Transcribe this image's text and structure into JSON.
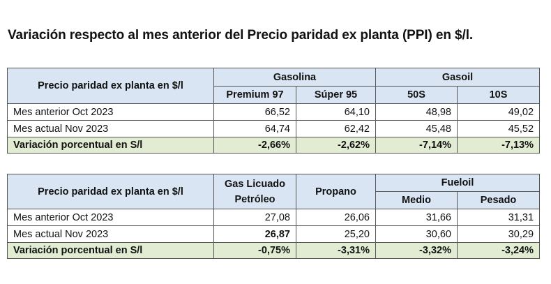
{
  "title": "Variación respecto al mes anterior del Precio paridad ex planta (PPI) en $/l.",
  "table1": {
    "header_label": "Precio paridad ex planta en $/l",
    "group1": "Gasolina",
    "group2": "Gasoil",
    "col1": "Premium 97",
    "col2": "Súper 95",
    "col3": "50S",
    "col4": "10S",
    "rows": [
      {
        "label": "Mes anterior Oct 2023",
        "values": [
          "66,52",
          "64,10",
          "48,98",
          "49,02"
        ]
      },
      {
        "label": "Mes actual Nov 2023",
        "values": [
          "64,74",
          "62,42",
          "45,48",
          "45,52"
        ]
      },
      {
        "label": "Variación porcentual en S/l",
        "values": [
          "-2,66%",
          "-2,62%",
          "-7,14%",
          "-7,13%"
        ]
      }
    ]
  },
  "table2": {
    "header_label": "Precio paridad ex planta en $/l",
    "col1_line1": "Gas Licuado",
    "col1_line2": "Petróleo",
    "col2": "Propano",
    "group": "Fueloil",
    "col3": "Medio",
    "col4": "Pesado",
    "rows": [
      {
        "label": "Mes anterior Oct 2023",
        "values": [
          "27,08",
          "26,06",
          "31,66",
          "31,31"
        ]
      },
      {
        "label": "Mes actual Nov 2023",
        "values": [
          "26,87",
          "25,20",
          "30,60",
          "30,29"
        ]
      },
      {
        "label": "Variación porcentual en S/l",
        "values": [
          "-0,75%",
          "-3,31%",
          "-3,32%",
          "-3,24%"
        ]
      }
    ]
  },
  "colors": {
    "header_bg": "#d9e5f2",
    "variation_bg": "#e2ecd3",
    "border": "#555555"
  }
}
